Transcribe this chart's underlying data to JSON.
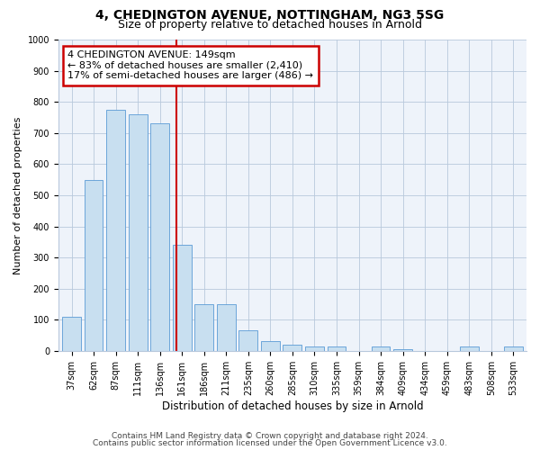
{
  "title1": "4, CHEDINGTON AVENUE, NOTTINGHAM, NG3 5SG",
  "title2": "Size of property relative to detached houses in Arnold",
  "xlabel": "Distribution of detached houses by size in Arnold",
  "ylabel": "Number of detached properties",
  "categories": [
    "37sqm",
    "62sqm",
    "87sqm",
    "111sqm",
    "136sqm",
    "161sqm",
    "186sqm",
    "211sqm",
    "235sqm",
    "260sqm",
    "285sqm",
    "310sqm",
    "335sqm",
    "359sqm",
    "384sqm",
    "409sqm",
    "434sqm",
    "459sqm",
    "483sqm",
    "508sqm",
    "533sqm"
  ],
  "values": [
    110,
    550,
    775,
    760,
    730,
    340,
    150,
    150,
    65,
    30,
    20,
    15,
    15,
    0,
    15,
    5,
    0,
    0,
    15,
    0,
    15
  ],
  "bar_color": "#c8dff0",
  "bar_edge_color": "#5b9bd5",
  "red_line_index": 4.75,
  "annotation_line1": "4 CHEDINGTON AVENUE: 149sqm",
  "annotation_line2": "← 83% of detached houses are smaller (2,410)",
  "annotation_line3": "17% of semi-detached houses are larger (486) →",
  "annotation_box_color": "white",
  "annotation_box_edge_color": "#cc0000",
  "ylim": [
    0,
    1000
  ],
  "yticks": [
    0,
    100,
    200,
    300,
    400,
    500,
    600,
    700,
    800,
    900,
    1000
  ],
  "footer1": "Contains HM Land Registry data © Crown copyright and database right 2024.",
  "footer2": "Contains public sector information licensed under the Open Government Licence v3.0.",
  "background_color": "#eef3fa",
  "grid_color": "#b8c8dc",
  "title1_fontsize": 10,
  "title2_fontsize": 9,
  "tick_fontsize": 7,
  "ylabel_fontsize": 8,
  "xlabel_fontsize": 8.5,
  "footer_fontsize": 6.5,
  "annotation_fontsize": 8
}
